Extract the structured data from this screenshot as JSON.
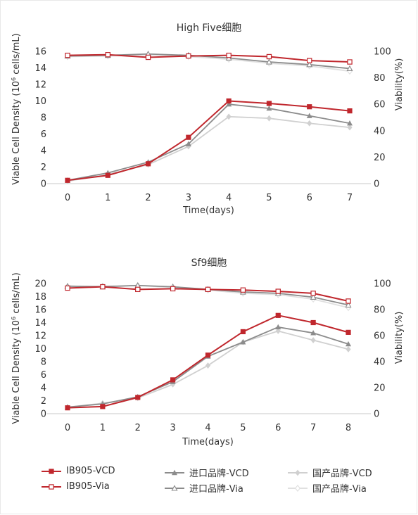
{
  "chart_data": [
    {
      "type": "line",
      "title": "High Five细胞",
      "xlabel": "Time(days)",
      "ylabel_left_pre": "Viable Cell Density (10",
      "ylabel_left_sup": "6",
      "ylabel_left_post": " cells/mL)",
      "ylabel_right": "Viability(%)",
      "x": [
        0,
        1,
        2,
        3,
        4,
        5,
        6,
        7
      ],
      "xlim": [
        0,
        7
      ],
      "ylim_left": [
        0,
        16
      ],
      "yticks_left": [
        0,
        2,
        4,
        6,
        8,
        10,
        12,
        14,
        16
      ],
      "ylim_right": [
        0,
        100
      ],
      "yticks_right": [
        0,
        20,
        40,
        60,
        80,
        100
      ],
      "series": [
        {
          "name": "IB905-VCD",
          "axis": "left",
          "values": [
            0.4,
            1.0,
            2.4,
            5.6,
            10.0,
            9.7,
            9.3,
            8.8
          ]
        },
        {
          "name": "进口品牌-VCD",
          "axis": "left",
          "values": [
            0.4,
            1.3,
            2.6,
            4.8,
            9.6,
            9.1,
            8.2,
            7.3
          ]
        },
        {
          "name": "国产品牌-VCD",
          "axis": "left",
          "values": [
            0.3,
            1.1,
            2.3,
            4.5,
            8.1,
            7.9,
            7.3,
            6.8
          ]
        },
        {
          "name": "IB905-Via",
          "axis": "right",
          "values": [
            97,
            97.5,
            95.5,
            96.5,
            97,
            96,
            93,
            92
          ]
        },
        {
          "name": "进口品牌-Via",
          "axis": "right",
          "values": [
            96.5,
            97,
            98,
            97,
            95,
            92,
            90,
            87
          ]
        },
        {
          "name": "国产品牌-Via",
          "axis": "right",
          "values": [
            96,
            96.5,
            97.5,
            96,
            94,
            91,
            89,
            85
          ]
        }
      ]
    },
    {
      "type": "line",
      "title": "Sf9细胞",
      "xlabel": "Time(days)",
      "ylabel_left_pre": "Viable Cell Density (10",
      "ylabel_left_sup": "6",
      "ylabel_left_post": " cells/mL)",
      "ylabel_right": "Viability(%)",
      "x": [
        0,
        1,
        2,
        3,
        4,
        5,
        6,
        7,
        8
      ],
      "xlim": [
        0,
        8
      ],
      "ylim_left": [
        0,
        20
      ],
      "yticks_left": [
        0,
        2,
        4,
        6,
        8,
        10,
        12,
        14,
        16,
        18,
        20
      ],
      "ylim_right": [
        0,
        100
      ],
      "yticks_right": [
        0,
        20,
        40,
        60,
        80,
        100
      ],
      "series": [
        {
          "name": "IB905-VCD",
          "axis": "left",
          "values": [
            0.9,
            1.1,
            2.5,
            5.2,
            9.0,
            12.6,
            15.1,
            14.0,
            12.5
          ]
        },
        {
          "name": "进口品牌-VCD",
          "axis": "left",
          "values": [
            1.0,
            1.5,
            2.6,
            4.9,
            8.8,
            11.0,
            13.3,
            12.4,
            10.7
          ]
        },
        {
          "name": "国产品牌-VCD",
          "axis": "left",
          "values": [
            1.0,
            1.6,
            2.4,
            4.5,
            7.4,
            11.0,
            12.7,
            11.3,
            9.9
          ]
        },
        {
          "name": "IB905-Via",
          "axis": "right",
          "values": [
            96.5,
            97.5,
            95.5,
            96,
            95.5,
            95,
            94,
            92.5,
            86.5
          ]
        },
        {
          "name": "进口品牌-Via",
          "axis": "right",
          "values": [
            98,
            97.5,
            98.5,
            97.5,
            95.5,
            93.5,
            92.5,
            89.5,
            83.5
          ]
        },
        {
          "name": "国产品牌-Via",
          "axis": "right",
          "values": [
            97.5,
            98,
            98.5,
            97,
            95,
            92.5,
            91.5,
            88,
            81.5
          ]
        }
      ]
    }
  ],
  "legend": [
    {
      "label": "IB905-VCD",
      "color": "#c0272d",
      "marker": "filled-square"
    },
    {
      "label": "进口品牌-VCD",
      "color": "#8c8c8c",
      "marker": "filled-triangle"
    },
    {
      "label": "国产品牌-VCD",
      "color": "#d0d0d0",
      "marker": "filled-diamond"
    },
    {
      "label": "IB905-Via",
      "color": "#c0272d",
      "marker": "open-square"
    },
    {
      "label": "进口品牌-Via",
      "color": "#8c8c8c",
      "marker": "open-triangle"
    },
    {
      "label": "国产品牌-Via",
      "color": "#e0e0e0",
      "marker": "open-diamond"
    }
  ]
}
